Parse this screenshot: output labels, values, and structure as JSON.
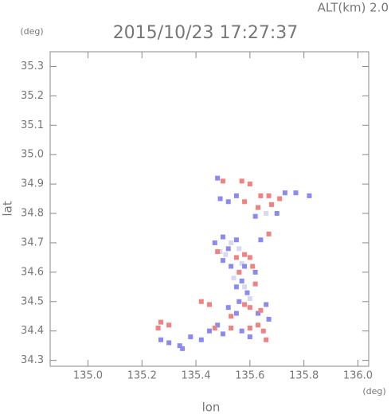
{
  "chart_data": {
    "type": "scatter",
    "title": "2015/10/23 17:27:37",
    "subtitle": "ALT(km)  2.0",
    "y_unit": "(deg)",
    "x_unit": "(deg)",
    "y_label": "lat",
    "x_label": "lon",
    "xlim": [
      134.86,
      136.04
    ],
    "ylim": [
      34.28,
      35.35
    ],
    "xticks": [
      {
        "value": 135,
        "label": "135.0"
      },
      135.2,
      135.4,
      135.6,
      135.8,
      {
        "value": 136,
        "label": "136.0"
      }
    ],
    "yticks": [
      34.3,
      34.4,
      34.5,
      34.6,
      34.7,
      34.8,
      34.9,
      {
        "value": 35,
        "label": "35.0"
      },
      35.1,
      35.2,
      35.3
    ],
    "series": [
      {
        "color": "#d8d8f2",
        "x": [
          135.53,
          135.56,
          135.51,
          135.57,
          135.54,
          135.58,
          135.6,
          135.49,
          135.66
        ],
        "y": [
          34.7,
          34.68,
          34.66,
          34.63,
          34.58,
          34.55,
          34.51,
          34.67,
          34.8
        ]
      },
      {
        "color": "#8a8af2",
        "x": [
          135.48,
          135.49,
          135.52,
          135.55,
          135.62,
          135.7,
          135.77,
          135.82,
          135.73,
          135.5,
          135.52,
          135.5,
          135.53,
          135.58,
          135.62,
          135.57,
          135.55,
          135.59,
          135.56,
          135.52,
          135.55,
          135.63,
          135.66,
          135.57,
          135.5,
          135.45,
          135.42,
          135.38,
          135.34,
          135.3,
          135.27,
          135.35,
          135.48,
          135.6,
          135.67,
          135.64,
          135.55,
          135.47
        ],
        "y": [
          34.92,
          34.85,
          34.84,
          34.86,
          34.79,
          34.8,
          34.87,
          34.86,
          34.87,
          34.72,
          34.68,
          34.64,
          34.62,
          34.62,
          34.6,
          34.57,
          34.55,
          34.53,
          34.5,
          34.48,
          34.46,
          34.46,
          34.49,
          34.4,
          34.39,
          34.4,
          34.37,
          34.38,
          34.35,
          34.36,
          34.37,
          34.34,
          34.42,
          34.38,
          34.44,
          34.71,
          34.71,
          34.7
        ]
      },
      {
        "color": "#f28282",
        "x": [
          135.57,
          135.6,
          135.64,
          135.67,
          135.63,
          135.68,
          135.5,
          135.58,
          135.48,
          135.55,
          135.58,
          135.6,
          135.61,
          135.56,
          135.62,
          135.6,
          135.58,
          135.64,
          135.6,
          135.63,
          135.65,
          135.66,
          135.53,
          135.47,
          135.45,
          135.42,
          135.3,
          135.27,
          135.26,
          135.67,
          135.53,
          135.71
        ],
        "y": [
          34.91,
          34.9,
          34.86,
          34.86,
          34.82,
          34.83,
          34.91,
          34.84,
          34.67,
          34.65,
          34.66,
          34.65,
          34.62,
          34.6,
          34.56,
          34.48,
          34.49,
          34.47,
          34.41,
          34.42,
          34.4,
          34.37,
          34.41,
          34.41,
          34.49,
          34.5,
          34.42,
          34.43,
          34.41,
          34.73,
          34.45,
          34.85
        ]
      }
    ]
  }
}
